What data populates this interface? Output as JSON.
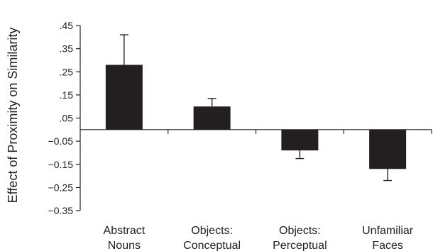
{
  "chart_data": {
    "type": "bar",
    "title": "",
    "ylabel": "Effect of Proximity on Similarity",
    "xlabel": "",
    "categories": [
      [
        "Abstract",
        "Nouns"
      ],
      [
        "Objects:",
        "Conceptual"
      ],
      [
        "Objects:",
        "Perceptual"
      ],
      [
        "Unfamiliar",
        "Faces"
      ]
    ],
    "values": [
      0.28,
      0.1,
      -0.09,
      -0.17
    ],
    "error_bars": [
      0.13,
      0.035,
      0.035,
      0.05
    ],
    "ylim": [
      -0.35,
      0.45
    ],
    "yticks": [
      0.45,
      0.35,
      0.25,
      0.15,
      0.05,
      -0.05,
      -0.15,
      -0.25,
      -0.35
    ],
    "ytick_labels": [
      ".45",
      ".35",
      ".25",
      ".15",
      ".05",
      "−0.05",
      "−0.15",
      "−0.25",
      "−0.35"
    ],
    "grid": false,
    "bar_color": "#231f20"
  }
}
